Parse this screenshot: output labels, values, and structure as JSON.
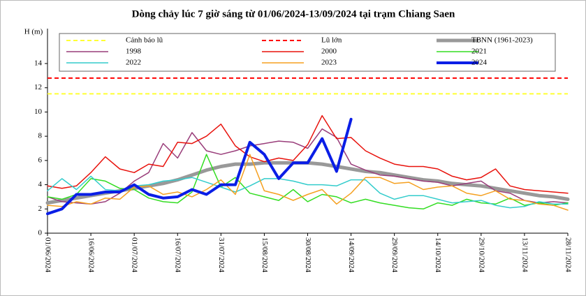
{
  "chart_data": {
    "type": "line",
    "title": "Dòng chảy lúc 7 giờ sáng từ 01/06/2024-13/09/2024 tại trạm Chiang Saen",
    "y_label": "H (m)",
    "x": [
      "01/06/2024",
      "06/06/2024",
      "11/06/2024",
      "16/06/2024",
      "21/06/2024",
      "26/06/2024",
      "01/07/2024",
      "06/07/2024",
      "11/07/2024",
      "16/07/2024",
      "21/07/2024",
      "26/07/2024",
      "31/07/2024",
      "05/08/2024",
      "10/08/2024",
      "15/08/2024",
      "20/08/2024",
      "25/08/2024",
      "30/08/2024",
      "04/09/2024",
      "09/09/2024",
      "14/09/2024",
      "19/09/2024",
      "24/09/2024",
      "29/09/2024",
      "04/10/2024",
      "09/10/2024",
      "14/10/2024",
      "19/10/2024",
      "24/10/2024",
      "29/10/2024",
      "03/11/2024",
      "08/11/2024",
      "13/11/2024",
      "18/11/2024",
      "23/11/2024",
      "28/11/2024"
    ],
    "xlim": [
      "01/06/2024",
      "28/11/2024"
    ],
    "xticks": [
      "01/06/2024",
      "16/06/2024",
      "01/07/2024",
      "16/07/2024",
      "31/07/2024",
      "15/08/2024",
      "30/08/2024",
      "14/09/2024",
      "29/09/2024",
      "14/10/2024",
      "29/10/2024",
      "13/11/2024",
      "28/11/2024"
    ],
    "ylim": [
      0,
      14
    ],
    "yticks": [
      0,
      2,
      4,
      6,
      8,
      10,
      12,
      14
    ],
    "thresholds": [
      {
        "name": "Cảnh báo lũ",
        "color": "#ffff33",
        "value": 11.5
      },
      {
        "name": "Lũ lớn",
        "color": "#ff0000",
        "value": 12.8
      }
    ],
    "series": [
      {
        "name": "TBNN (1961-2023)",
        "color": "#999999",
        "width": 5,
        "values": [
          2.5,
          2.7,
          2.9,
          3.1,
          3.3,
          3.5,
          3.7,
          3.9,
          4.1,
          4.4,
          4.8,
          5.2,
          5.5,
          5.7,
          5.7,
          5.8,
          5.8,
          5.8,
          5.8,
          5.7,
          5.5,
          5.3,
          5.1,
          5.0,
          4.8,
          4.6,
          4.4,
          4.3,
          4.1,
          4.0,
          3.9,
          3.7,
          3.5,
          3.3,
          3.1,
          3.0,
          2.8
        ]
      },
      {
        "name": "1998",
        "color": "#993d7a",
        "width": 1.5,
        "values": [
          3.0,
          2.6,
          2.5,
          2.4,
          2.6,
          3.3,
          4.3,
          5.0,
          7.4,
          6.2,
          8.3,
          6.8,
          6.5,
          6.8,
          7.2,
          7.4,
          7.6,
          7.5,
          7.0,
          8.6,
          7.9,
          5.7,
          5.2,
          4.8,
          4.7,
          4.5,
          4.3,
          4.2,
          3.9,
          4.1,
          4.3,
          3.5,
          3.3,
          2.7,
          2.5,
          2.6,
          2.5
        ]
      },
      {
        "name": "2000",
        "color": "#e8120c",
        "width": 1.5,
        "values": [
          3.9,
          3.7,
          3.9,
          5.0,
          6.3,
          5.3,
          5.0,
          5.7,
          5.5,
          7.5,
          7.4,
          8.0,
          9.0,
          7.2,
          6.3,
          5.9,
          6.2,
          6.0,
          7.3,
          9.7,
          7.8,
          7.9,
          6.8,
          6.2,
          5.7,
          5.5,
          5.5,
          5.3,
          4.7,
          4.4,
          4.6,
          5.3,
          3.9,
          3.6,
          3.5,
          3.4,
          3.3
        ]
      },
      {
        "name": "2021",
        "color": "#33dd22",
        "width": 1.5,
        "values": [
          3.0,
          2.8,
          3.2,
          4.5,
          4.3,
          3.7,
          3.6,
          2.9,
          2.6,
          2.5,
          3.4,
          6.5,
          3.8,
          4.6,
          3.3,
          3.0,
          2.7,
          3.6,
          2.6,
          3.2,
          3.0,
          2.5,
          2.8,
          2.5,
          2.3,
          2.1,
          2.0,
          2.5,
          2.3,
          2.8,
          2.5,
          2.4,
          2.9,
          2.3,
          2.5,
          2.3,
          2.5
        ]
      },
      {
        "name": "2022",
        "color": "#33cccc",
        "width": 1.5,
        "values": [
          3.5,
          4.5,
          3.6,
          4.7,
          3.6,
          3.5,
          3.9,
          4.0,
          4.3,
          4.4,
          4.6,
          4.2,
          3.8,
          3.4,
          3.9,
          4.5,
          4.5,
          4.3,
          4.0,
          4.0,
          3.9,
          4.4,
          4.4,
          3.3,
          2.8,
          3.1,
          3.1,
          2.8,
          2.5,
          2.6,
          2.7,
          2.3,
          2.1,
          2.2,
          2.6,
          2.4,
          2.4
        ]
      },
      {
        "name": "2023",
        "color": "#f5a020",
        "width": 1.5,
        "values": [
          2.3,
          2.2,
          2.6,
          2.4,
          2.9,
          2.8,
          3.8,
          3.9,
          3.2,
          3.4,
          3.0,
          3.6,
          4.4,
          3.2,
          6.5,
          3.5,
          3.2,
          2.7,
          3.2,
          3.6,
          2.4,
          3.3,
          4.6,
          4.6,
          4.1,
          4.2,
          3.6,
          3.8,
          3.9,
          3.3,
          3.1,
          3.5,
          2.8,
          2.7,
          2.4,
          2.3,
          1.9
        ]
      },
      {
        "name": "2024",
        "color": "#0a1ee6",
        "width": 4,
        "values": [
          1.6,
          2.0,
          3.2,
          3.2,
          3.4,
          3.4,
          4.0,
          3.2,
          2.9,
          3.0,
          3.6,
          3.2,
          4.0,
          4.0,
          7.5,
          6.5,
          4.5,
          5.8,
          5.8,
          7.8,
          5.1,
          9.4,
          null,
          null,
          null,
          null,
          null,
          null,
          null,
          null,
          null,
          null,
          null,
          null,
          null,
          null,
          null
        ]
      }
    ]
  }
}
